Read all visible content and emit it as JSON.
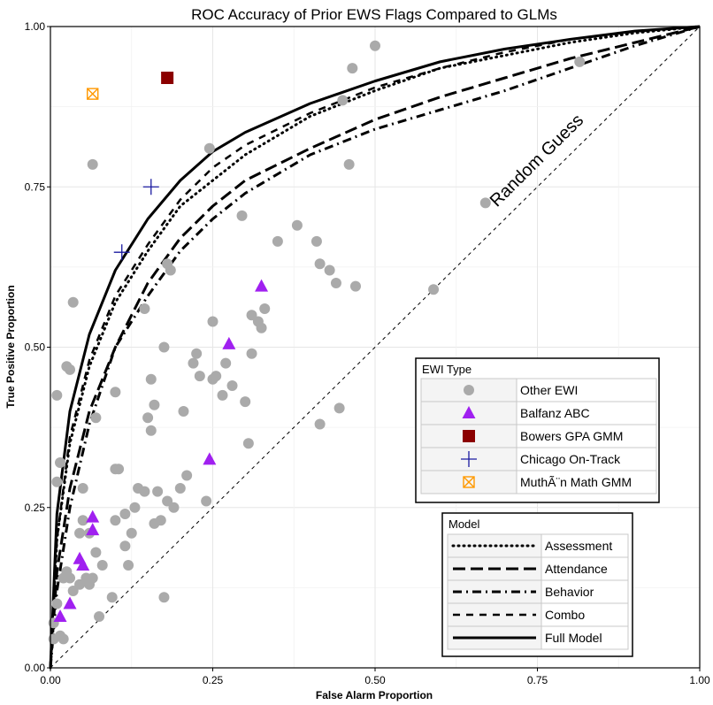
{
  "chart_data": {
    "type": "scatter",
    "title": "ROC Accuracy of Prior EWS Flags Compared to GLMs",
    "xlabel": "False Alarm Proportion",
    "ylabel": "True Positive Proportion",
    "xlim": [
      0,
      1
    ],
    "ylim": [
      0,
      1
    ],
    "xticks": [
      {
        "value": 0,
        "label": "0.00"
      },
      {
        "value": 0.25,
        "label": "0.25"
      },
      {
        "value": 0.5,
        "label": "0.50"
      },
      {
        "value": 0.75,
        "label": "0.75"
      },
      {
        "value": 1,
        "label": "1.00"
      }
    ],
    "yticks": [
      {
        "value": 0,
        "label": "0.00"
      },
      {
        "value": 0.25,
        "label": "0.25"
      },
      {
        "value": 0.5,
        "label": "0.50"
      },
      {
        "value": 0.75,
        "label": "0.75"
      },
      {
        "value": 1,
        "label": "1.00"
      }
    ],
    "grid": true,
    "annotation": "Random Guess",
    "ewi_legend_title": "EWI Type",
    "model_legend_title": "Model",
    "points": [
      {
        "name": "Other EWI",
        "shape": "circle",
        "color": "#aaaaaa",
        "points": [
          [
            0.005,
            0.045
          ],
          [
            0.015,
            0.05
          ],
          [
            0.02,
            0.045
          ],
          [
            0.005,
            0.07
          ],
          [
            0.01,
            0.1
          ],
          [
            0.02,
            0.14
          ],
          [
            0.025,
            0.15
          ],
          [
            0.03,
            0.14
          ],
          [
            0.035,
            0.12
          ],
          [
            0.045,
            0.13
          ],
          [
            0.055,
            0.14
          ],
          [
            0.06,
            0.13
          ],
          [
            0.065,
            0.14
          ],
          [
            0.07,
            0.18
          ],
          [
            0.075,
            0.08
          ],
          [
            0.08,
            0.16
          ],
          [
            0.095,
            0.11
          ],
          [
            0.045,
            0.21
          ],
          [
            0.05,
            0.23
          ],
          [
            0.06,
            0.21
          ],
          [
            0.05,
            0.28
          ],
          [
            0.1,
            0.23
          ],
          [
            0.115,
            0.24
          ],
          [
            0.125,
            0.21
          ],
          [
            0.12,
            0.16
          ],
          [
            0.115,
            0.19
          ],
          [
            0.13,
            0.25
          ],
          [
            0.135,
            0.28
          ],
          [
            0.145,
            0.275
          ],
          [
            0.16,
            0.225
          ],
          [
            0.165,
            0.275
          ],
          [
            0.17,
            0.23
          ],
          [
            0.175,
            0.11
          ],
          [
            0.18,
            0.26
          ],
          [
            0.19,
            0.25
          ],
          [
            0.2,
            0.28
          ],
          [
            0.21,
            0.3
          ],
          [
            0.24,
            0.26
          ],
          [
            0.01,
            0.29
          ],
          [
            0.015,
            0.32
          ],
          [
            0.01,
            0.425
          ],
          [
            0.025,
            0.47
          ],
          [
            0.03,
            0.465
          ],
          [
            0.035,
            0.57
          ],
          [
            0.07,
            0.39
          ],
          [
            0.1,
            0.43
          ],
          [
            0.1,
            0.31
          ],
          [
            0.105,
            0.31
          ],
          [
            0.145,
            0.56
          ],
          [
            0.15,
            0.39
          ],
          [
            0.155,
            0.37
          ],
          [
            0.155,
            0.45
          ],
          [
            0.16,
            0.41
          ],
          [
            0.175,
            0.5
          ],
          [
            0.185,
            0.62
          ],
          [
            0.18,
            0.63
          ],
          [
            0.205,
            0.4
          ],
          [
            0.22,
            0.475
          ],
          [
            0.225,
            0.49
          ],
          [
            0.23,
            0.455
          ],
          [
            0.245,
            0.81
          ],
          [
            0.25,
            0.54
          ],
          [
            0.25,
            0.45
          ],
          [
            0.255,
            0.455
          ],
          [
            0.265,
            0.425
          ],
          [
            0.27,
            0.475
          ],
          [
            0.28,
            0.44
          ],
          [
            0.3,
            0.415
          ],
          [
            0.305,
            0.35
          ],
          [
            0.31,
            0.49
          ],
          [
            0.31,
            0.55
          ],
          [
            0.32,
            0.54
          ],
          [
            0.325,
            0.53
          ],
          [
            0.33,
            0.56
          ],
          [
            0.295,
            0.705
          ],
          [
            0.35,
            0.665
          ],
          [
            0.38,
            0.69
          ],
          [
            0.41,
            0.665
          ],
          [
            0.415,
            0.63
          ],
          [
            0.415,
            0.38
          ],
          [
            0.43,
            0.62
          ],
          [
            0.44,
            0.6
          ],
          [
            0.445,
            0.405
          ],
          [
            0.47,
            0.595
          ],
          [
            0.45,
            0.885
          ],
          [
            0.46,
            0.785
          ],
          [
            0.465,
            0.935
          ],
          [
            0.5,
            0.97
          ],
          [
            0.59,
            0.59
          ],
          [
            0.67,
            0.725
          ],
          [
            0.815,
            0.945
          ],
          [
            0.065,
            0.785
          ]
        ]
      },
      {
        "name": "Balfanz ABC",
        "shape": "triangle",
        "color": "#a020f0",
        "points": [
          [
            0.015,
            0.08
          ],
          [
            0.03,
            0.1
          ],
          [
            0.045,
            0.17
          ],
          [
            0.05,
            0.16
          ],
          [
            0.065,
            0.235
          ],
          [
            0.065,
            0.215
          ],
          [
            0.245,
            0.325
          ],
          [
            0.275,
            0.505
          ],
          [
            0.325,
            0.595
          ]
        ]
      },
      {
        "name": "Bowers GPA GMM",
        "shape": "square",
        "color": "#8b0000",
        "points": [
          [
            0.18,
            0.92
          ]
        ]
      },
      {
        "name": "Chicago On-Track",
        "shape": "cross",
        "color": "#1a1aa0",
        "points": [
          [
            0.155,
            0.75
          ],
          [
            0.11,
            0.648
          ]
        ]
      },
      {
        "name": "MuthÃ¨n Math GMM",
        "shape": "xsquare",
        "color": "#ff9900",
        "points": [
          [
            0.065,
            0.895
          ]
        ]
      }
    ],
    "series": [
      {
        "name": "Assessment",
        "dash": "dotted",
        "values": [
          [
            0,
            0
          ],
          [
            0.01,
            0.2
          ],
          [
            0.03,
            0.35
          ],
          [
            0.06,
            0.47
          ],
          [
            0.1,
            0.57
          ],
          [
            0.15,
            0.65
          ],
          [
            0.2,
            0.72
          ],
          [
            0.25,
            0.76
          ],
          [
            0.3,
            0.8
          ],
          [
            0.4,
            0.86
          ],
          [
            0.5,
            0.9
          ],
          [
            0.6,
            0.935
          ],
          [
            0.7,
            0.955
          ],
          [
            0.8,
            0.975
          ],
          [
            0.9,
            0.99
          ],
          [
            1,
            1
          ]
        ]
      },
      {
        "name": "Attendance",
        "dash": "longdash",
        "values": [
          [
            0,
            0
          ],
          [
            0.01,
            0.15
          ],
          [
            0.03,
            0.28
          ],
          [
            0.06,
            0.4
          ],
          [
            0.1,
            0.5
          ],
          [
            0.15,
            0.6
          ],
          [
            0.2,
            0.67
          ],
          [
            0.25,
            0.72
          ],
          [
            0.3,
            0.76
          ],
          [
            0.4,
            0.81
          ],
          [
            0.5,
            0.855
          ],
          [
            0.6,
            0.89
          ],
          [
            0.7,
            0.92
          ],
          [
            0.8,
            0.95
          ],
          [
            0.9,
            0.975
          ],
          [
            1,
            1
          ]
        ]
      },
      {
        "name": "Behavior",
        "dash": "dotdash",
        "values": [
          [
            0,
            0
          ],
          [
            0.01,
            0.12
          ],
          [
            0.03,
            0.25
          ],
          [
            0.06,
            0.38
          ],
          [
            0.1,
            0.5
          ],
          [
            0.15,
            0.58
          ],
          [
            0.2,
            0.65
          ],
          [
            0.25,
            0.7
          ],
          [
            0.3,
            0.74
          ],
          [
            0.35,
            0.77
          ],
          [
            0.4,
            0.8
          ],
          [
            0.5,
            0.84
          ],
          [
            0.6,
            0.87
          ],
          [
            0.7,
            0.9
          ],
          [
            0.8,
            0.935
          ],
          [
            0.9,
            0.97
          ],
          [
            1,
            1
          ]
        ]
      },
      {
        "name": "Combo",
        "dash": "dashed",
        "values": [
          [
            0,
            0
          ],
          [
            0.01,
            0.2
          ],
          [
            0.03,
            0.36
          ],
          [
            0.06,
            0.48
          ],
          [
            0.1,
            0.58
          ],
          [
            0.15,
            0.66
          ],
          [
            0.2,
            0.73
          ],
          [
            0.25,
            0.78
          ],
          [
            0.3,
            0.815
          ],
          [
            0.4,
            0.865
          ],
          [
            0.5,
            0.905
          ],
          [
            0.6,
            0.935
          ],
          [
            0.7,
            0.96
          ],
          [
            0.8,
            0.98
          ],
          [
            0.9,
            0.992
          ],
          [
            1,
            1
          ]
        ]
      },
      {
        "name": "Full Model",
        "dash": "solid",
        "values": [
          [
            0,
            0
          ],
          [
            0.01,
            0.24
          ],
          [
            0.03,
            0.4
          ],
          [
            0.06,
            0.52
          ],
          [
            0.1,
            0.62
          ],
          [
            0.15,
            0.7
          ],
          [
            0.2,
            0.76
          ],
          [
            0.25,
            0.805
          ],
          [
            0.3,
            0.835
          ],
          [
            0.4,
            0.88
          ],
          [
            0.5,
            0.915
          ],
          [
            0.6,
            0.945
          ],
          [
            0.7,
            0.965
          ],
          [
            0.8,
            0.98
          ],
          [
            0.9,
            0.993
          ],
          [
            1,
            1
          ]
        ]
      }
    ]
  }
}
